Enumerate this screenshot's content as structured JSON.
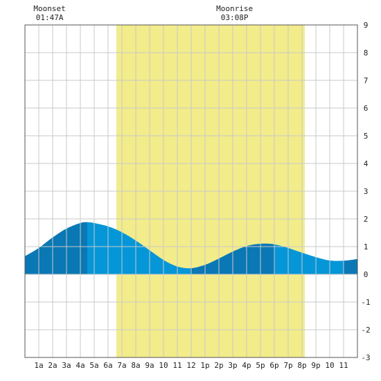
{
  "chart_data": {
    "type": "area",
    "title": "",
    "xlabel": "",
    "ylabel": "",
    "xlim": [
      0,
      24
    ],
    "ylim": [
      -3,
      9
    ],
    "grid": true,
    "x_ticks": [
      {
        "x": 1,
        "label": "1a"
      },
      {
        "x": 2,
        "label": "2a"
      },
      {
        "x": 3,
        "label": "3a"
      },
      {
        "x": 4,
        "label": "4a"
      },
      {
        "x": 5,
        "label": "5a"
      },
      {
        "x": 6,
        "label": "6a"
      },
      {
        "x": 7,
        "label": "7a"
      },
      {
        "x": 8,
        "label": "8a"
      },
      {
        "x": 9,
        "label": "9a"
      },
      {
        "x": 10,
        "label": "10"
      },
      {
        "x": 11,
        "label": "11"
      },
      {
        "x": 12,
        "label": "12"
      },
      {
        "x": 13,
        "label": "1p"
      },
      {
        "x": 14,
        "label": "2p"
      },
      {
        "x": 15,
        "label": "3p"
      },
      {
        "x": 16,
        "label": "4p"
      },
      {
        "x": 17,
        "label": "5p"
      },
      {
        "x": 18,
        "label": "6p"
      },
      {
        "x": 19,
        "label": "7p"
      },
      {
        "x": 20,
        "label": "8p"
      },
      {
        "x": 21,
        "label": "9p"
      },
      {
        "x": 22,
        "label": "10"
      },
      {
        "x": 23,
        "label": "11"
      }
    ],
    "y_ticks": [
      -3,
      -2,
      -1,
      0,
      1,
      2,
      3,
      4,
      5,
      6,
      7,
      8,
      9
    ],
    "daylight": {
      "start": 6.6,
      "end": 20.2,
      "color": "#f2ec8a"
    },
    "tide": {
      "x": [
        0,
        1,
        2,
        3,
        4,
        4.5,
        5,
        6,
        7,
        8,
        9,
        10,
        11,
        12,
        13,
        14,
        15,
        16,
        17,
        18,
        19,
        20,
        21,
        22,
        23,
        24
      ],
      "values": [
        0.65,
        0.95,
        1.33,
        1.65,
        1.85,
        1.88,
        1.85,
        1.73,
        1.52,
        1.22,
        0.87,
        0.52,
        0.28,
        0.22,
        0.34,
        0.57,
        0.82,
        1.02,
        1.1,
        1.08,
        0.95,
        0.78,
        0.62,
        0.5,
        0.49,
        0.55
      ],
      "peaks": [
        {
          "x": 4.5,
          "y": 1.88
        },
        {
          "x": 18,
          "y": 1.1
        }
      ],
      "colors": {
        "main": "#0596d8",
        "dark": "#0a78b4"
      }
    },
    "annotations": [
      {
        "x": 1.78,
        "label": "Moonset",
        "time": "01:47A"
      },
      {
        "x": 15.13,
        "label": "Moonrise",
        "time": "03:08P"
      }
    ]
  }
}
